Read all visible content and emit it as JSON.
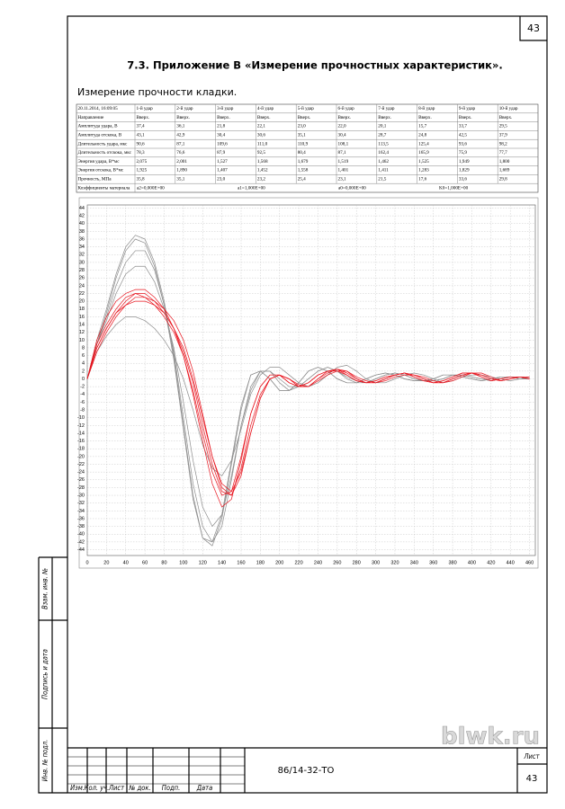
{
  "page_number": "43",
  "title": "7.3. Приложение В «Измерение прочностных характеристик».",
  "subtitle": "Измерение прочности кладки.",
  "table": {
    "header": [
      "20.11.2014, 16:09:05",
      "1-й удар",
      "2-й удар",
      "3-й удар",
      "4-й удар",
      "5-й удар",
      "6-й удар",
      "7-й удар",
      "8-й удар",
      "9-й удар",
      "10-й удар"
    ],
    "rows": [
      [
        "Направление",
        "Вверх.",
        "Вверх.",
        "Вверх.",
        "Вверх.",
        "Вверх.",
        "Вверх.",
        "Вверх.",
        "Вверх.",
        "Вверх.",
        "Вверх."
      ],
      [
        "Амплитуда удара, В",
        "37,4",
        "36,1",
        "21,8",
        "22,1",
        "23,0",
        "22,0",
        "20,1",
        "15,7",
        "33,7",
        "29,5"
      ],
      [
        "Амплитуда отскока, В",
        "43,1",
        "42,9",
        "30,4",
        "30,6",
        "35,1",
        "30,4",
        "28,7",
        "24,8",
        "42,5",
        "37,9"
      ],
      [
        "Длительность удара, мкс",
        "90,6",
        "87,1",
        "109,6",
        "111,0",
        "110,9",
        "108,1",
        "113,5",
        "125,4",
        "93,6",
        "98,2"
      ],
      [
        "Длительность отскока, мкс",
        "78,3",
        "76,6",
        "87,9",
        "92,5",
        "80,4",
        "87,1",
        "162,4",
        "165,9",
        "75,9",
        "77,7"
      ],
      [
        "Энергия удара, В*мс",
        "2,075",
        "2,001",
        "1,527",
        "1,568",
        "1,679",
        "1,519",
        "1,462",
        "1,525",
        "1,949",
        "1,800"
      ],
      [
        "Энергия отскока, В*мс",
        "1,925",
        "1,890",
        "1,407",
        "1,452",
        "1,558",
        "1,401",
        "1,411",
        "1,283",
        "1,829",
        "1,689"
      ],
      [
        "Прочность, МПа",
        "35,8",
        "35,1",
        "23,0",
        "23,2",
        "25,4",
        "23,1",
        "21,5",
        "17,6",
        "33,6",
        "29,8"
      ]
    ],
    "coefficients": {
      "label": "Коэффициенты материала",
      "values": [
        "a2=0,000E+00",
        "a1=1,000E+00",
        "a0=0,000E+00",
        "K0=1,000E+00"
      ]
    }
  },
  "chart_data": {
    "type": "line",
    "x": [
      0,
      10,
      20,
      30,
      40,
      50,
      60,
      70,
      80,
      90,
      100,
      110,
      120,
      130,
      140,
      150,
      160,
      170,
      180,
      190,
      200,
      210,
      220,
      230,
      240,
      250,
      260,
      270,
      280,
      290,
      300,
      310,
      320,
      330,
      340,
      350,
      360,
      370,
      380,
      390,
      400,
      410,
      420,
      430,
      440,
      450,
      460
    ],
    "xlim": [
      0,
      466
    ],
    "xticks": [
      0,
      20,
      40,
      60,
      80,
      100,
      120,
      140,
      160,
      180,
      200,
      220,
      240,
      260,
      280,
      300,
      320,
      340,
      360,
      380,
      400,
      420,
      440,
      460
    ],
    "ylim": [
      -45.5,
      44.8
    ],
    "yticks": [
      -44,
      -42,
      -40,
      -38,
      -36,
      -34,
      -32,
      -30,
      -28,
      -26,
      -24,
      -22,
      -20,
      -18,
      -16,
      -14,
      -12,
      -10,
      -8,
      -6,
      -4,
      -2,
      0,
      2,
      4,
      6,
      8,
      10,
      12,
      14,
      16,
      18,
      20,
      22,
      24,
      26,
      28,
      30,
      32,
      34,
      36,
      38,
      40,
      42,
      44
    ],
    "grid": true,
    "series": [
      {
        "color": "#8c8c8c",
        "values": [
          0,
          10,
          18,
          27,
          34,
          37,
          36,
          30,
          20,
          6,
          -12,
          -30,
          -41,
          -43,
          -36,
          -22,
          -8,
          1,
          2,
          0,
          -3,
          -3,
          -1,
          2,
          3,
          2,
          0,
          -1,
          -1,
          0,
          1,
          1.5,
          1,
          0,
          -0.5,
          -0.5,
          0,
          1,
          1,
          0.5,
          0,
          -0.5,
          0,
          0.5,
          0.5,
          0,
          0
        ]
      },
      {
        "color": "#8c8c8c",
        "values": [
          0,
          9,
          17,
          26,
          33,
          36,
          35,
          29,
          19,
          5,
          -13,
          -31,
          -41,
          -42,
          -35,
          -21,
          -7,
          1,
          2,
          0,
          -3,
          -3,
          -1,
          2,
          3,
          2,
          0,
          -1,
          -1,
          0,
          1,
          1.5,
          1,
          0,
          -0.5,
          -0.5,
          0,
          1,
          1,
          0.5,
          0,
          -0.5,
          0,
          0.5,
          0.5,
          0,
          0
        ]
      },
      {
        "color": "#e8141e",
        "values": [
          0,
          9,
          14,
          18,
          21,
          22,
          21,
          19,
          16,
          12,
          6,
          -3,
          -14,
          -24,
          -30,
          -29,
          -20,
          -9,
          -2,
          1,
          1,
          -1,
          -2,
          -1,
          1,
          2,
          2.5,
          1,
          -0.5,
          -1,
          -0.5,
          0.5,
          1,
          1.5,
          0.5,
          -0.5,
          -1,
          -0.5,
          0.5,
          1.5,
          1.5,
          0.5,
          -0.5,
          0,
          0.5,
          0.5,
          0
        ]
      },
      {
        "color": "#e8141e",
        "values": [
          0,
          8,
          13,
          17,
          20,
          22,
          22,
          20,
          17,
          13,
          7,
          -1,
          -12,
          -22,
          -29,
          -30,
          -23,
          -12,
          -4,
          0,
          1,
          0,
          -2,
          -2,
          0,
          2,
          2.5,
          1.5,
          0,
          -1,
          -1,
          0,
          1,
          1.5,
          1,
          0,
          -1,
          -1,
          0,
          1,
          1.5,
          1,
          0,
          -0.5,
          0,
          0.5,
          0.5
        ]
      },
      {
        "color": "#e8141e",
        "values": [
          0,
          10,
          16,
          20,
          22,
          23,
          23,
          21,
          18,
          13,
          6,
          -4,
          -16,
          -27,
          -33,
          -31,
          -21,
          -9,
          -2,
          1,
          1,
          -1,
          -2,
          -1,
          1,
          2,
          2,
          1,
          -0.5,
          -1,
          -0.5,
          0.5,
          1,
          1.5,
          0.5,
          -0.5,
          -1,
          -0.5,
          0.5,
          1.5,
          1.5,
          0.5,
          -0.5,
          0,
          0.5,
          0.5,
          0
        ]
      },
      {
        "color": "#e8141e",
        "values": [
          0,
          7,
          12,
          16,
          19,
          21,
          21,
          20,
          18,
          15,
          10,
          2,
          -9,
          -20,
          -28,
          -30,
          -25,
          -14,
          -5,
          0,
          1,
          0,
          -2,
          -2,
          0,
          1.5,
          2.5,
          2,
          0,
          -1,
          -1,
          0,
          1,
          1.5,
          1,
          0,
          -1,
          -1,
          0,
          1,
          1.5,
          1,
          0,
          -0.5,
          0,
          0.5,
          0.5
        ]
      },
      {
        "color": "#e8141e",
        "values": [
          0,
          8,
          13,
          17,
          19,
          20,
          20,
          19,
          17,
          13,
          8,
          0,
          -10,
          -20,
          -27,
          -29,
          -24,
          -14,
          -5,
          0,
          1,
          0,
          -1.5,
          -2,
          -0.5,
          1,
          2,
          2,
          0.5,
          -0.5,
          -1,
          -0.5,
          0.5,
          1,
          1,
          0.5,
          -0.5,
          -1,
          -0.5,
          0.5,
          1.5,
          1.5,
          0.5,
          -0.5,
          0,
          0.5,
          0.5
        ]
      },
      {
        "color": "#8c8c8c",
        "values": [
          0,
          7,
          11,
          14,
          16,
          16,
          15,
          13,
          10,
          6,
          0,
          -8,
          -17,
          -23,
          -25,
          -21,
          -13,
          -4,
          1,
          3,
          3,
          1,
          -1,
          -2,
          -1,
          1,
          3,
          3.5,
          2,
          0,
          -1,
          -1,
          0,
          1,
          1.5,
          1,
          0,
          -1,
          -0.5,
          0.5,
          1,
          1,
          0.5,
          0,
          -0.5,
          0,
          0.5
        ]
      },
      {
        "color": "#8c8c8c",
        "values": [
          0,
          9,
          16,
          24,
          30,
          33,
          33,
          28,
          19,
          7,
          -10,
          -27,
          -38,
          -42,
          -38,
          -26,
          -12,
          -2,
          2,
          2,
          -1,
          -3,
          -2,
          0,
          2,
          3,
          2,
          0,
          -1,
          -1,
          0,
          1,
          1.5,
          1,
          0,
          -0.5,
          -0.5,
          0,
          1,
          1,
          0.5,
          0,
          -0.5,
          0,
          0.5,
          0.5,
          0
        ]
      },
      {
        "color": "#8c8c8c",
        "values": [
          0,
          9,
          15,
          22,
          27,
          29,
          29,
          25,
          18,
          8,
          -6,
          -21,
          -33,
          -38,
          -35,
          -25,
          -12,
          -3,
          2,
          2,
          0,
          -2,
          -2,
          0,
          2,
          3,
          2,
          0.5,
          -0.5,
          -1,
          0,
          1,
          1.5,
          1,
          0,
          -0.5,
          -0.5,
          0,
          1,
          1,
          0.5,
          0,
          -0.5,
          0,
          0.5,
          0.5,
          0
        ]
      }
    ]
  },
  "stamp": {
    "side_labels": [
      "Взам. инв. №",
      "Подпись и дата",
      "Инв. № подл."
    ],
    "columns": [
      "Изм.",
      "Кол. уч.",
      "Лист",
      "№ док.",
      "Подп.",
      "Дата"
    ],
    "code": "86/14-32-ТО",
    "sheet_label": "Лист",
    "sheet": "43"
  },
  "watermark": "blwk.ru"
}
